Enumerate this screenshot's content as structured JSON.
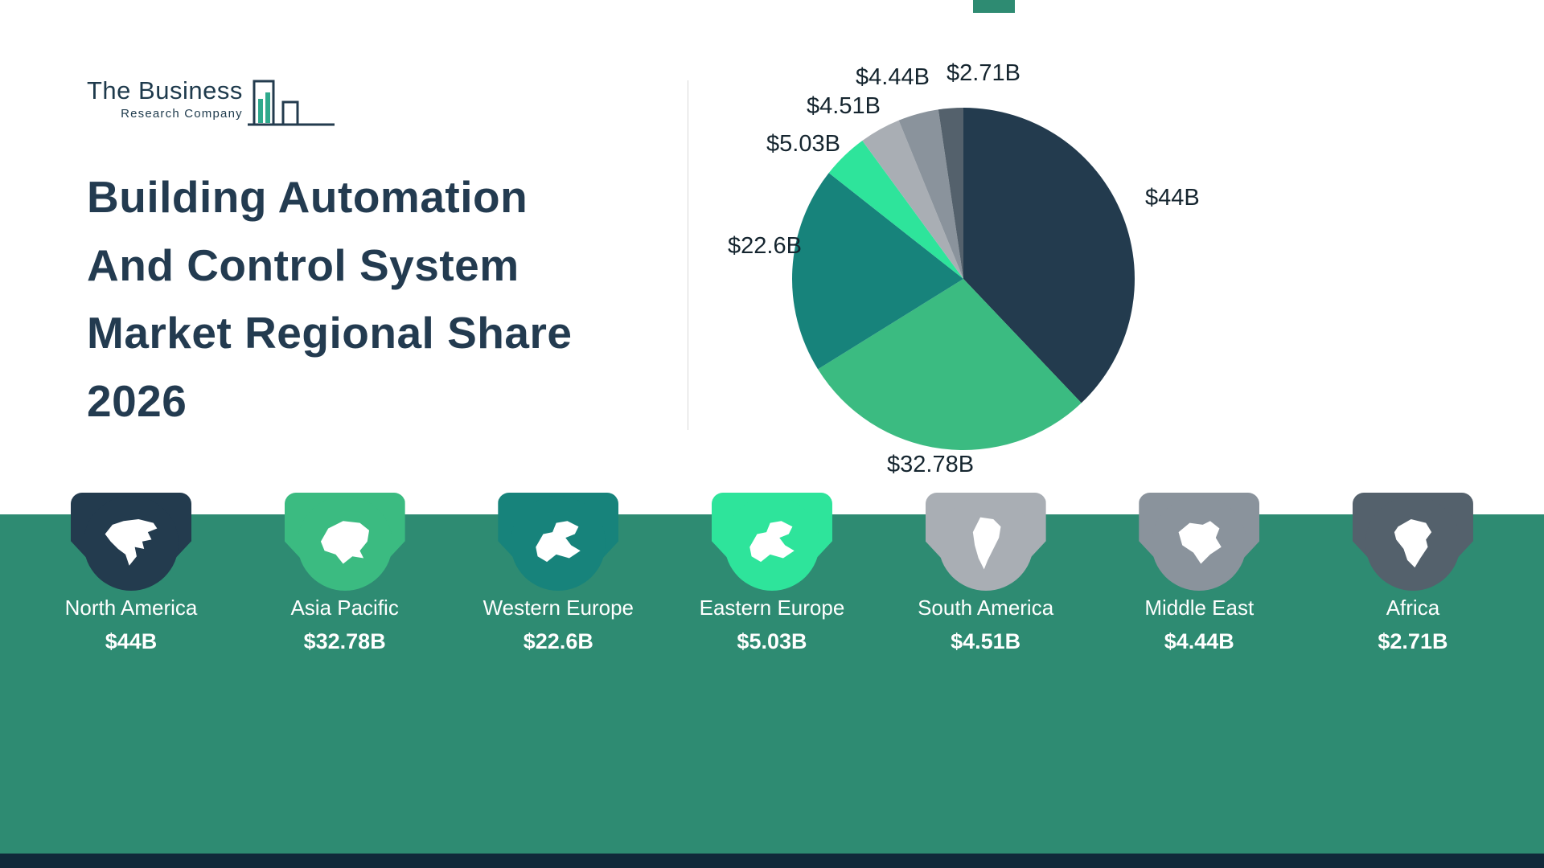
{
  "logo": {
    "line1": "The Business",
    "line2": "Research Company"
  },
  "title_lines": [
    "Building Automation",
    "And Control System",
    "Market Regional Share",
    "2026"
  ],
  "chart_data": {
    "type": "pie",
    "title": "Building Automation And Control System Market Regional Share 2026",
    "unit": "USD billions",
    "legend_position": "bottom",
    "slices": [
      {
        "label": "North America",
        "value": 44,
        "display": "$44B",
        "color": "#233B4E"
      },
      {
        "label": "Asia Pacific",
        "value": 32.78,
        "display": "$32.78B",
        "color": "#3BBB81"
      },
      {
        "label": "Western Europe",
        "value": 22.6,
        "display": "$22.6B",
        "color": "#17837B"
      },
      {
        "label": "Eastern Europe",
        "value": 5.03,
        "display": "$5.03B",
        "color": "#2EE49B"
      },
      {
        "label": "South America",
        "value": 4.51,
        "display": "$4.51B",
        "color": "#A9AEB4"
      },
      {
        "label": "Middle East",
        "value": 4.44,
        "display": "$4.44B",
        "color": "#8A939C"
      },
      {
        "label": "Africa",
        "value": 2.71,
        "display": "$2.71B",
        "color": "#54616C"
      }
    ]
  }
}
